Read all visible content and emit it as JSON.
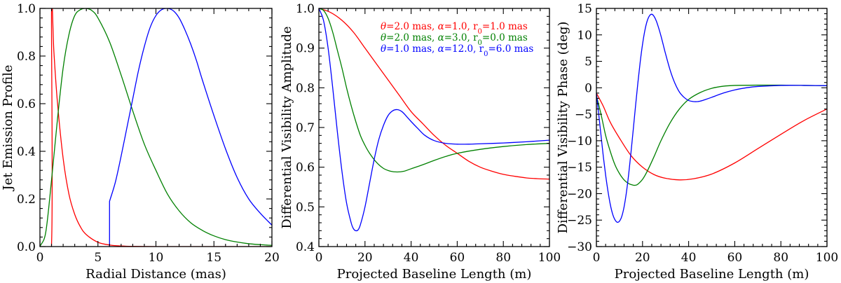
{
  "chart_data": [
    {
      "type": "line",
      "title": "",
      "xlabel": "Radial Distance (mas)",
      "ylabel": "Jet Emission Profile",
      "xlim": [
        0,
        20
      ],
      "ylim": [
        0,
        1.0
      ],
      "xticks": [
        "0",
        "5",
        "10",
        "15",
        "20"
      ],
      "yticks": [
        "0.0",
        "0.2",
        "0.4",
        "0.6",
        "0.8",
        "1.0"
      ],
      "grid": false,
      "series": [
        {
          "color": "#ff0000",
          "x": [
            0,
            0.99,
            1.0,
            1.2,
            1.5,
            2,
            2.5,
            3,
            3.5,
            4,
            5,
            6,
            7,
            8,
            10,
            12,
            14,
            16,
            18,
            20
          ],
          "y": [
            0,
            0,
            1.0,
            0.82,
            0.61,
            0.37,
            0.22,
            0.135,
            0.082,
            0.05,
            0.018,
            0.0067,
            0.0025,
            0.0009,
            0.0001,
            0,
            0,
            0,
            0,
            0
          ]
        },
        {
          "color": "#008000",
          "x": [
            0,
            0.5,
            1,
            1.5,
            2,
            2.5,
            3,
            3.5,
            4,
            4.5,
            5,
            6,
            7,
            8,
            9,
            10,
            11,
            12,
            13,
            14,
            15,
            16,
            17,
            18,
            19,
            20
          ],
          "y": [
            0,
            0.06,
            0.28,
            0.53,
            0.75,
            0.89,
            0.97,
            0.995,
            1.0,
            0.99,
            0.96,
            0.86,
            0.72,
            0.57,
            0.43,
            0.32,
            0.22,
            0.15,
            0.1,
            0.068,
            0.045,
            0.029,
            0.019,
            0.012,
            0.008,
            0.005
          ]
        },
        {
          "color": "#0000ff",
          "x": [
            6,
            6.0,
            6.5,
            7,
            7.5,
            8,
            8.5,
            9,
            9.5,
            10,
            10.5,
            11,
            11.5,
            12,
            12.5,
            13,
            13.5,
            14,
            15,
            16,
            17,
            18,
            19,
            20
          ],
          "y": [
            0,
            0.19,
            0.27,
            0.38,
            0.5,
            0.62,
            0.74,
            0.84,
            0.92,
            0.97,
            0.995,
            1.0,
            0.99,
            0.96,
            0.91,
            0.85,
            0.78,
            0.7,
            0.55,
            0.41,
            0.29,
            0.2,
            0.14,
            0.09
          ]
        }
      ]
    },
    {
      "type": "line",
      "title": "",
      "xlabel": "Projected Baseline Length (m)",
      "ylabel": "Differential Visibility Amplitude",
      "xlim": [
        0,
        100
      ],
      "ylim": [
        0.4,
        1.0
      ],
      "xticks": [
        "0",
        "20",
        "40",
        "60",
        "80",
        "100"
      ],
      "yticks": [
        "0.4",
        "0.5",
        "0.6",
        "0.7",
        "0.8",
        "0.9",
        "1.0"
      ],
      "grid": false,
      "legend": {
        "placement": "top-right"
      },
      "series": [
        {
          "name": "θ=2.0 mas, α=1.0, r0=1.0 mas",
          "color": "#ff0000",
          "x": [
            0,
            5,
            10,
            15,
            20,
            25,
            30,
            35,
            40,
            45,
            50,
            55,
            60,
            65,
            70,
            75,
            80,
            85,
            90,
            95,
            100
          ],
          "y": [
            1.0,
            0.99,
            0.97,
            0.94,
            0.9,
            0.86,
            0.82,
            0.78,
            0.74,
            0.71,
            0.68,
            0.655,
            0.635,
            0.615,
            0.6,
            0.59,
            0.582,
            0.577,
            0.573,
            0.571,
            0.57
          ]
        },
        {
          "name": "θ=2.0 mas, α=3.0, r0=0.0 mas",
          "color": "#008000",
          "x": [
            0,
            2,
            4,
            6,
            8,
            10,
            12,
            14,
            16,
            18,
            20,
            22,
            25,
            28,
            31,
            34,
            37,
            40,
            45,
            50,
            55,
            60,
            70,
            80,
            90,
            100
          ],
          "y": [
            1.0,
            0.995,
            0.975,
            0.94,
            0.895,
            0.85,
            0.8,
            0.755,
            0.715,
            0.68,
            0.655,
            0.635,
            0.612,
            0.597,
            0.59,
            0.588,
            0.59,
            0.596,
            0.606,
            0.617,
            0.627,
            0.635,
            0.645,
            0.652,
            0.657,
            0.66
          ]
        },
        {
          "name": "θ=1.0 mas, α=12.0, r0=6.0 mas",
          "color": "#0000ff",
          "x": [
            0,
            2,
            4,
            6,
            8,
            10,
            12,
            14,
            15,
            16,
            17,
            18,
            20,
            22,
            24,
            26,
            28,
            30,
            32,
            34,
            36,
            38,
            40,
            43,
            46,
            50,
            55,
            60,
            65,
            70,
            80,
            90,
            100
          ],
          "y": [
            1.0,
            0.97,
            0.9,
            0.8,
            0.69,
            0.59,
            0.51,
            0.46,
            0.445,
            0.44,
            0.442,
            0.455,
            0.5,
            0.56,
            0.62,
            0.67,
            0.705,
            0.73,
            0.742,
            0.745,
            0.74,
            0.728,
            0.715,
            0.697,
            0.68,
            0.667,
            0.66,
            0.658,
            0.658,
            0.659,
            0.661,
            0.664,
            0.668
          ]
        }
      ]
    },
    {
      "type": "line",
      "title": "",
      "xlabel": "Projected Baseline Length (m)",
      "ylabel": "Differential Visibility Phase (deg)",
      "xlim": [
        0,
        100
      ],
      "ylim": [
        -30,
        15
      ],
      "xticks": [
        "0",
        "20",
        "40",
        "60",
        "80",
        "100"
      ],
      "yticks": [
        "−30",
        "−25",
        "−20",
        "−15",
        "−10",
        "−5",
        "0",
        "5",
        "10",
        "15"
      ],
      "grid": false,
      "series": [
        {
          "color": "#ff0000",
          "x": [
            0,
            3,
            6,
            10,
            15,
            20,
            25,
            30,
            36,
            42,
            50,
            60,
            70,
            80,
            90,
            100
          ],
          "y": [
            -1,
            -3.5,
            -6.5,
            -9.5,
            -12.8,
            -15,
            -16.4,
            -17.1,
            -17.4,
            -17.2,
            -16.3,
            -14.2,
            -11.5,
            -8.8,
            -6.2,
            -4
          ]
        },
        {
          "color": "#008000",
          "x": [
            0,
            2,
            4,
            6,
            8,
            10,
            12,
            14,
            16,
            17,
            18,
            20,
            22,
            25,
            28,
            32,
            36,
            40,
            45,
            50,
            55,
            60,
            70,
            80,
            90,
            100
          ],
          "y": [
            -1.5,
            -5,
            -9,
            -12,
            -14.5,
            -16.2,
            -17.4,
            -18.1,
            -18.4,
            -18.4,
            -18.2,
            -17.3,
            -15.8,
            -13,
            -10,
            -6.6,
            -4,
            -2.2,
            -0.9,
            -0.1,
            0.3,
            0.45,
            0.5,
            0.5,
            0.45,
            0.4
          ]
        },
        {
          "color": "#0000ff",
          "x": [
            0,
            1,
            2,
            3,
            4,
            5,
            6,
            7,
            8,
            9,
            10,
            11,
            12,
            13,
            14,
            15,
            16,
            17,
            18,
            19,
            20,
            21,
            22,
            23,
            24,
            25,
            26,
            27,
            28,
            29,
            30,
            32,
            34,
            36,
            38,
            40,
            42,
            44,
            46,
            48,
            50,
            55,
            60,
            65,
            70,
            80,
            90,
            100
          ],
          "y": [
            -1,
            -5,
            -9,
            -13,
            -16.5,
            -19.5,
            -22,
            -23.8,
            -24.9,
            -25.4,
            -25.2,
            -24.3,
            -22.5,
            -19.8,
            -16.3,
            -12.2,
            -7.8,
            -3.3,
            1.0,
            4.9,
            8.2,
            10.8,
            12.6,
            13.6,
            13.9,
            13.5,
            12.6,
            11.3,
            9.8,
            8.1,
            6.4,
            3.3,
            0.9,
            -0.8,
            -1.8,
            -2.4,
            -2.6,
            -2.6,
            -2.4,
            -2.1,
            -1.8,
            -1.0,
            -0.4,
            0,
            0.25,
            0.45,
            0.45,
            0.4
          ]
        }
      ]
    }
  ]
}
